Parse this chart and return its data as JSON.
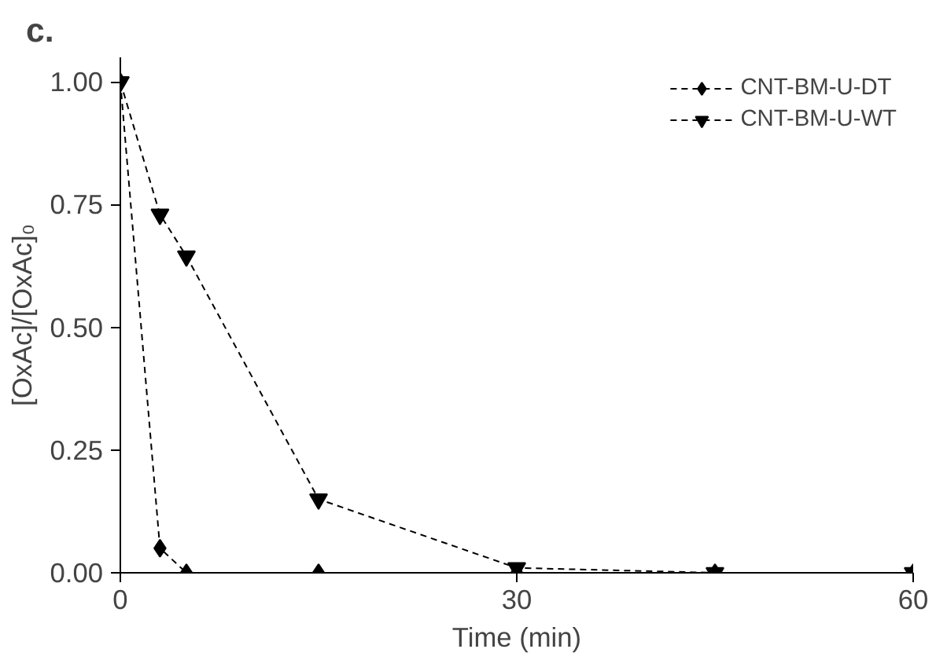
{
  "chart_data": {
    "type": "line",
    "title": "c.",
    "xlabel": "Time (min)",
    "ylabel": "[OxAc]/[OxAc]₀",
    "xlim": [
      0,
      60
    ],
    "xticks": [
      0,
      30,
      60
    ],
    "ylim": [
      0,
      1.05
    ],
    "yticks": [
      {
        "value": 0,
        "label": "0.00"
      },
      {
        "value": 0.25,
        "label": "0.25"
      },
      {
        "value": 0.5,
        "label": "0.50"
      },
      {
        "value": 0.75,
        "label": "0.75"
      },
      {
        "value": 1,
        "label": "1.00"
      }
    ],
    "grid": false,
    "legend": "top right",
    "line_style": "dashed",
    "series": [
      {
        "name": "CNT-BM-U-DT",
        "color": "#000000",
        "marker": "diamond",
        "x": [
          0,
          3,
          5,
          15,
          30,
          45,
          60
        ],
        "values": [
          1.0,
          0.05,
          0.0,
          0.0,
          0.0,
          0.0,
          0.0
        ]
      },
      {
        "name": "CNT-BM-U-WT",
        "color": "#000000",
        "marker": "triangle_down",
        "x": [
          0,
          3,
          5,
          15,
          30,
          45,
          60
        ],
        "values": [
          1.0,
          0.73,
          0.645,
          0.15,
          0.01,
          0.0,
          0.0
        ]
      }
    ]
  }
}
